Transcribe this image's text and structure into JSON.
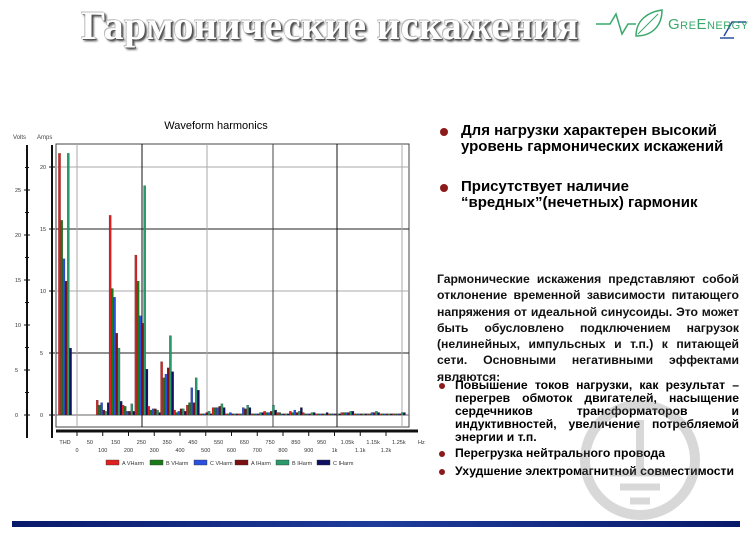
{
  "slide": {
    "title": "Гармонические искажения",
    "logo": {
      "text": "GreEnergy",
      "color": "#3aa86a"
    },
    "bullets": [
      "Для нагрузки характерен высокий уровень гармонических искажений",
      "Присутствует наличие “вредных”(нечетных) гармоник"
    ],
    "paragraph": "Гармонические искажения представляют собой отклонение временной зависимости питающего напряжения от идеальной синусоиды. Это может быть обусловлено подключением нагрузок (нелинейных, импульсных и т.п.) к питающей сети. Основными негативными эффектами являются:",
    "effects": [
      "Повышение токов нагрузки, как результат – перегрев обмоток двигателей, насыщение сердечников трансформаторов и индуктивностей, увеличение потребляемой энергии и т.п.",
      "Перегрузка нейтрального провода",
      "Ухудшение электромагнитной совместимости"
    ],
    "watermark": "защищено ZANDZ.RU",
    "accent_color": "#8b1a1a",
    "footer_bar_color": "#1e3c9a"
  },
  "chart_data": {
    "type": "bar",
    "title": "Waveform harmonics",
    "ylabel_left": "Volts",
    "ylabel_right": "Amps",
    "volts_ticks": [
      "0",
      "5",
      "10",
      "15",
      "20",
      "25"
    ],
    "amps_ticks": [
      "0",
      "5",
      "10",
      "15",
      "20"
    ],
    "x_ticks_top": [
      "THD",
      "50",
      "150",
      "250",
      "350",
      "450",
      "550",
      "650",
      "750",
      "850",
      "950",
      "1.05k",
      "1.15k",
      "1.25k"
    ],
    "x_ticks_bottom": [
      "0",
      "100",
      "200",
      "300",
      "400",
      "500",
      "600",
      "700",
      "800",
      "900",
      "1k",
      "1.1k",
      "1.2k"
    ],
    "x_unit": "Hz",
    "ylim_amps": [
      -1,
      21.5
    ],
    "categories": [
      "THD",
      "100",
      "150",
      "200",
      "250",
      "300",
      "350",
      "400",
      "450",
      "500",
      "550",
      "600",
      "650",
      "700",
      "750",
      "800",
      "850",
      "900",
      "950",
      "1000",
      "1050",
      "1100",
      "1150",
      "1200",
      "1250"
    ],
    "series": [
      {
        "name": "A VHarm",
        "color": "#e02020",
        "values": [
          21.1,
          1.2,
          16.1,
          0.8,
          12.9,
          0.7,
          4.3,
          0.4,
          0.8,
          0.1,
          0.6,
          0.1,
          0.1,
          0.1,
          0.3,
          0.2,
          0.3,
          0.2,
          0.1,
          0.1,
          0.2,
          0.1,
          0.1,
          0.1,
          0.1
        ]
      },
      {
        "name": "B VHarm",
        "color": "#1a7a1a",
        "values": [
          15.7,
          0.8,
          10.2,
          0.7,
          10.8,
          0.4,
          3.0,
          0.2,
          1.0,
          0.1,
          0.6,
          0.1,
          0.1,
          0.1,
          0.2,
          0.2,
          0.2,
          0.1,
          0.1,
          0.1,
          0.2,
          0.1,
          0.1,
          0.1,
          0.1
        ]
      },
      {
        "name": "C VHarm",
        "color": "#2a50e0",
        "values": [
          12.6,
          1.0,
          9.5,
          0.3,
          8.0,
          0.5,
          3.3,
          0.3,
          2.2,
          0.1,
          0.6,
          0.2,
          0.6,
          0.1,
          0.2,
          0.1,
          0.4,
          0.1,
          0.1,
          0.1,
          0.2,
          0.1,
          0.2,
          0.1,
          0.1
        ]
      },
      {
        "name": "A IHarm",
        "color": "#7a1010",
        "values": [
          10.8,
          0.4,
          6.6,
          0.3,
          7.4,
          0.5,
          3.8,
          0.5,
          1.0,
          0.2,
          0.7,
          0.1,
          0.5,
          0.1,
          0.3,
          0.1,
          0.2,
          0.1,
          0.1,
          0.1,
          0.2,
          0.1,
          0.2,
          0.1,
          0.1
        ]
      },
      {
        "name": "B IHarm",
        "color": "#2a9a6a",
        "values": [
          21.1,
          0.3,
          5.4,
          0.9,
          18.5,
          0.4,
          6.4,
          0.5,
          3.0,
          0.3,
          0.9,
          0.1,
          0.8,
          0.2,
          0.8,
          0.1,
          0.3,
          0.2,
          0.1,
          0.1,
          0.3,
          0.1,
          0.3,
          0.1,
          0.2
        ]
      },
      {
        "name": "C IHarm",
        "color": "#101060",
        "values": [
          5.4,
          1.0,
          1.1,
          0.3,
          3.7,
          0.2,
          3.5,
          0.3,
          2.0,
          0.1,
          0.6,
          0.1,
          0.6,
          0.2,
          0.4,
          0.1,
          0.6,
          0.2,
          0.2,
          0.1,
          0.3,
          0.1,
          0.2,
          0.1,
          0.2
        ]
      }
    ],
    "legend_position": "bottom",
    "grid": true
  }
}
